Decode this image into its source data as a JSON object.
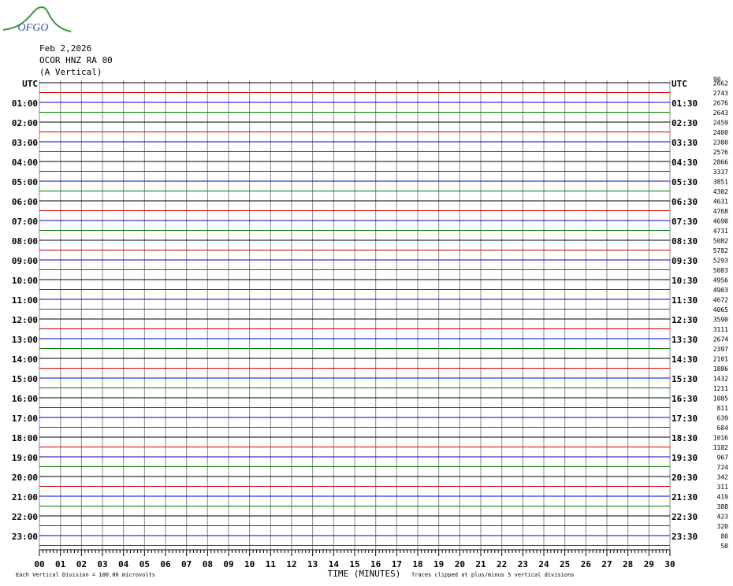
{
  "header": {
    "logo": "OFGO",
    "date": "Feb 2,2026",
    "station": "OCOR HNZ RA 00",
    "component": "(A Vertical)",
    "top_right_note": "96"
  },
  "left_labels": [
    "UTC",
    "01:00",
    "02:00",
    "03:00",
    "04:00",
    "05:00",
    "06:00",
    "07:00",
    "08:00",
    "09:00",
    "10:00",
    "11:00",
    "12:00",
    "13:00",
    "14:00",
    "15:00",
    "16:00",
    "17:00",
    "18:00",
    "19:00",
    "20:00",
    "21:00",
    "22:00",
    "23:00"
  ],
  "right_labels": [
    "UTC",
    "01:30",
    "02:30",
    "03:30",
    "04:30",
    "05:30",
    "06:30",
    "07:30",
    "08:30",
    "09:30",
    "10:30",
    "11:30",
    "12:30",
    "13:30",
    "14:30",
    "15:30",
    "16:30",
    "17:30",
    "18:30",
    "19:30",
    "20:30",
    "21:30",
    "22:30",
    "23:30"
  ],
  "row_values": [
    2662,
    2743,
    2676,
    2643,
    2459,
    2400,
    2380,
    2576,
    2866,
    3337,
    3851,
    4302,
    4631,
    4768,
    4690,
    4731,
    5082,
    5782,
    5293,
    5083,
    4956,
    4903,
    4672,
    4065,
    3590,
    3111,
    2674,
    2397,
    2101,
    1886,
    1432,
    1211,
    1085,
    811,
    639,
    684,
    1016,
    1182,
    967,
    724,
    342,
    311,
    419,
    388,
    423,
    320,
    80,
    58
  ],
  "trace_colors": [
    "#000000",
    "#d00000",
    "#0000c8",
    "#007800"
  ],
  "x_ticks": [
    "00",
    "01",
    "02",
    "03",
    "04",
    "05",
    "06",
    "07",
    "08",
    "09",
    "10",
    "11",
    "12",
    "13",
    "14",
    "15",
    "16",
    "17",
    "18",
    "19",
    "20",
    "21",
    "22",
    "23",
    "24",
    "25",
    "26",
    "27",
    "28",
    "29",
    "30"
  ],
  "x_label": "TIME (MINUTES)",
  "footer_left": "Each Vertical Division =  100.00 microvolts",
  "footer_right": "Traces clipped at plus/minus 5 vertical divisions"
}
